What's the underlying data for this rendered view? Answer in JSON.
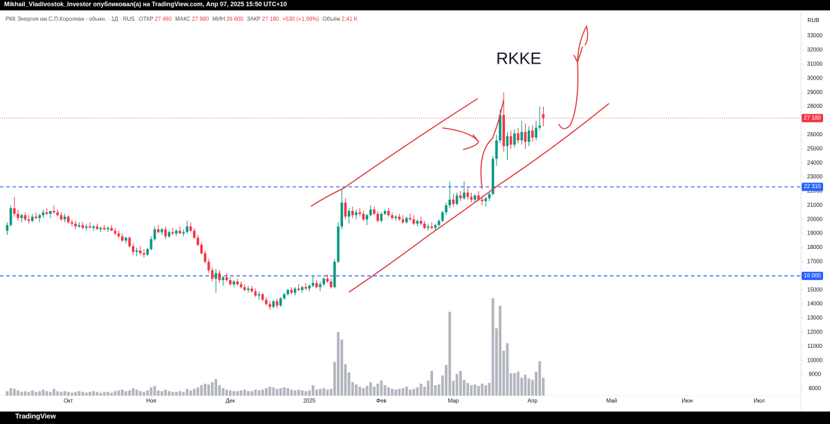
{
  "header": "Mikhail_Vladivostok_Investor опубликовал(а) на TradingView.com, Апр 07, 2025 15:50 UTC+10",
  "footer": "TradingView",
  "chart_data": {
    "type": "candlestick",
    "symbol": "РКК Энергия им.С.П.Королева - обыкн. · 1Д · RUS",
    "legend": [
      {
        "label": "ОТКР",
        "value": "27 460"
      },
      {
        "label": "МАКС",
        "value": "27 980"
      },
      {
        "label": "МИН",
        "value": "26 600"
      },
      {
        "label": "ЗАКР",
        "value": "27 180"
      }
    ],
    "change": "+530 (+1,99%)",
    "volume_label": {
      "label": "Объём",
      "value": "2,41 K"
    },
    "annotation": "RKKE",
    "currency": "RUB",
    "up_color": "#089981",
    "down_color": "#f23645",
    "volume_color": "#b2b5be",
    "grid": false,
    "xlim": [
      -2,
      221
    ],
    "ylim": [
      6480,
      34720
    ],
    "y2lim": [
      0,
      17
    ],
    "yticks": [
      8000,
      9000,
      10000,
      11000,
      12000,
      13000,
      14000,
      15000,
      16000,
      17000,
      18000,
      19000,
      20000,
      21000,
      22000,
      23000,
      24000,
      25000,
      26000,
      27000,
      28000,
      29000,
      30000,
      31000,
      32000,
      33000
    ],
    "xticks": [
      {
        "value": 17,
        "label": "Окт"
      },
      {
        "value": 40,
        "label": "Ноя"
      },
      {
        "value": 62,
        "label": "Дек"
      },
      {
        "value": 84,
        "label": "2025"
      },
      {
        "value": 104,
        "label": "Фев"
      },
      {
        "value": 124,
        "label": "Мар"
      },
      {
        "value": 146,
        "label": "Апр"
      },
      {
        "value": 168,
        "label": "Май"
      },
      {
        "value": 189,
        "label": "Июн"
      },
      {
        "value": 209,
        "label": "Июл"
      }
    ],
    "last_price": {
      "value": 27180,
      "label": "27 180",
      "color": "#f23645"
    },
    "levels": [
      {
        "value": 22310,
        "label": "22 310",
        "color": "#2962ff"
      },
      {
        "value": 16000,
        "label": "16 000",
        "color": "#2962ff"
      }
    ],
    "ohlc": [
      [
        19200,
        19800,
        18900,
        19600
      ],
      [
        19600,
        21000,
        19500,
        20800
      ],
      [
        20800,
        21600,
        20200,
        20400
      ],
      [
        20400,
        20700,
        19900,
        20100
      ],
      [
        20100,
        20400,
        19800,
        20300
      ],
      [
        20300,
        20500,
        19900,
        20000
      ],
      [
        20000,
        20300,
        19700,
        19900
      ],
      [
        19900,
        20400,
        19800,
        20200
      ],
      [
        20200,
        20500,
        20000,
        20100
      ],
      [
        20100,
        20400,
        19800,
        20300
      ],
      [
        20300,
        20700,
        20100,
        20500
      ],
      [
        20500,
        20800,
        20300,
        20400
      ],
      [
        20400,
        20600,
        20100,
        20600
      ],
      [
        20600,
        21000,
        20400,
        20500
      ],
      [
        20500,
        20700,
        20200,
        20300
      ],
      [
        20300,
        20500,
        19900,
        20000
      ],
      [
        20000,
        20400,
        19800,
        20200
      ],
      [
        20200,
        20300,
        19700,
        19800
      ],
      [
        19800,
        20000,
        19500,
        19700
      ],
      [
        19700,
        19900,
        19300,
        19500
      ],
      [
        19500,
        19800,
        19400,
        19600
      ],
      [
        19600,
        19800,
        19300,
        19400
      ],
      [
        19400,
        19700,
        19200,
        19500
      ],
      [
        19500,
        19800,
        19400,
        19400
      ],
      [
        19400,
        19600,
        19200,
        19500
      ],
      [
        19500,
        19700,
        19300,
        19300
      ],
      [
        19300,
        19500,
        19100,
        19400
      ],
      [
        19400,
        19600,
        19200,
        19300
      ],
      [
        19300,
        19500,
        19100,
        19400
      ],
      [
        19400,
        19600,
        19200,
        19200
      ],
      [
        19200,
        19400,
        18900,
        19000
      ],
      [
        19000,
        19200,
        18700,
        18800
      ],
      [
        18800,
        19000,
        18400,
        18500
      ],
      [
        18500,
        18800,
        18300,
        18700
      ],
      [
        18700,
        18800,
        18000,
        18100
      ],
      [
        18100,
        18300,
        17500,
        17700
      ],
      [
        17700,
        18000,
        17400,
        17800
      ],
      [
        17800,
        18100,
        17500,
        17600
      ],
      [
        17600,
        17900,
        17300,
        17500
      ],
      [
        17500,
        18000,
        17400,
        17900
      ],
      [
        17900,
        18800,
        17800,
        18600
      ],
      [
        18600,
        19500,
        18500,
        19300
      ],
      [
        19300,
        19600,
        19000,
        19100
      ],
      [
        19100,
        19400,
        18900,
        19300
      ],
      [
        19300,
        19500,
        18600,
        18800
      ],
      [
        18800,
        19200,
        18700,
        19100
      ],
      [
        19100,
        19400,
        18900,
        19000
      ],
      [
        19000,
        19300,
        18800,
        19200
      ],
      [
        19200,
        19500,
        19000,
        19000
      ],
      [
        19000,
        19300,
        18800,
        19100
      ],
      [
        19100,
        19900,
        19000,
        19500
      ],
      [
        19500,
        19800,
        19100,
        19200
      ],
      [
        19200,
        19400,
        18600,
        18700
      ],
      [
        18700,
        18900,
        18100,
        18200
      ],
      [
        18200,
        18400,
        17500,
        17600
      ],
      [
        17600,
        17800,
        16900,
        17000
      ],
      [
        17000,
        17200,
        16200,
        16400
      ],
      [
        16400,
        16600,
        15600,
        15800
      ],
      [
        15800,
        16500,
        14800,
        16200
      ],
      [
        16200,
        16400,
        15500,
        15700
      ],
      [
        15700,
        16000,
        15300,
        15900
      ],
      [
        15900,
        16200,
        15600,
        15700
      ],
      [
        15700,
        15900,
        15300,
        15400
      ],
      [
        15400,
        15700,
        15200,
        15600
      ],
      [
        15600,
        15800,
        15300,
        15400
      ],
      [
        15400,
        15600,
        15100,
        15200
      ],
      [
        15200,
        15400,
        14900,
        15000
      ],
      [
        15000,
        15300,
        14800,
        15100
      ],
      [
        15100,
        15300,
        14800,
        14900
      ],
      [
        14900,
        15100,
        14500,
        14600
      ],
      [
        14600,
        14900,
        14300,
        14700
      ],
      [
        14700,
        14800,
        14200,
        14300
      ],
      [
        14300,
        14500,
        13900,
        14000
      ],
      [
        14000,
        14200,
        13600,
        13800
      ],
      [
        13800,
        14300,
        13700,
        14200
      ],
      [
        14200,
        14400,
        13700,
        13900
      ],
      [
        13900,
        14500,
        13800,
        14400
      ],
      [
        14400,
        14800,
        14300,
        14700
      ],
      [
        14700,
        15100,
        14600,
        15000
      ],
      [
        15000,
        15200,
        14700,
        14800
      ],
      [
        14800,
        15200,
        14600,
        15100
      ],
      [
        15100,
        15400,
        14900,
        15000
      ],
      [
        15000,
        15300,
        14800,
        15200
      ],
      [
        15200,
        15500,
        15000,
        15100
      ],
      [
        15100,
        15400,
        14900,
        15300
      ],
      [
        15300,
        16000,
        15200,
        15500
      ],
      [
        15500,
        15700,
        15100,
        15200
      ],
      [
        15200,
        15600,
        14900,
        15400
      ],
      [
        15400,
        15900,
        15300,
        15800
      ],
      [
        15800,
        16100,
        15500,
        15600
      ],
      [
        15600,
        15800,
        15100,
        15200
      ],
      [
        15200,
        17200,
        15100,
        17000
      ],
      [
        17000,
        19800,
        16900,
        19500
      ],
      [
        19500,
        22200,
        19300,
        21200
      ],
      [
        21200,
        21500,
        20000,
        20200
      ],
      [
        20200,
        20800,
        19700,
        20600
      ],
      [
        20600,
        20900,
        20100,
        20300
      ],
      [
        20300,
        20700,
        20000,
        20500
      ],
      [
        20500,
        20800,
        20200,
        20400
      ],
      [
        20400,
        20600,
        19900,
        20000
      ],
      [
        20000,
        20400,
        19600,
        20300
      ],
      [
        20300,
        21000,
        20200,
        20700
      ],
      [
        20700,
        20900,
        20300,
        20400
      ],
      [
        20400,
        20600,
        19800,
        19900
      ],
      [
        19900,
        20500,
        19800,
        20400
      ],
      [
        20400,
        20700,
        20300,
        20600
      ],
      [
        20600,
        20800,
        20200,
        20300
      ],
      [
        20300,
        20500,
        20000,
        20100
      ],
      [
        20100,
        20300,
        19900,
        20200
      ],
      [
        20200,
        20400,
        19900,
        20000
      ],
      [
        20000,
        20300,
        19700,
        19800
      ],
      [
        19800,
        20200,
        19700,
        20100
      ],
      [
        20100,
        20400,
        19900,
        20000
      ],
      [
        20000,
        20300,
        19600,
        19700
      ],
      [
        19700,
        20000,
        19500,
        19900
      ],
      [
        19900,
        20200,
        19600,
        19700
      ],
      [
        19700,
        19900,
        19300,
        19400
      ],
      [
        19400,
        19700,
        19200,
        19500
      ],
      [
        19500,
        19800,
        19300,
        19400
      ],
      [
        19400,
        19700,
        19200,
        19600
      ],
      [
        19600,
        20000,
        19500,
        19900
      ],
      [
        19900,
        20600,
        19800,
        20500
      ],
      [
        20500,
        21200,
        20300,
        21000
      ],
      [
        21000,
        22700,
        20800,
        21400
      ],
      [
        21400,
        21800,
        20900,
        21100
      ],
      [
        21100,
        21900,
        21000,
        21700
      ],
      [
        21700,
        22000,
        21300,
        21500
      ],
      [
        21500,
        22700,
        21400,
        21900
      ],
      [
        21900,
        22300,
        21400,
        21600
      ],
      [
        21600,
        21900,
        21200,
        21400
      ],
      [
        21400,
        21800,
        21200,
        21700
      ],
      [
        21700,
        22000,
        21300,
        21400
      ],
      [
        21400,
        21700,
        21000,
        21300
      ],
      [
        21300,
        21600,
        20900,
        21500
      ],
      [
        21500,
        21900,
        21300,
        21800
      ],
      [
        21800,
        24500,
        21700,
        24300
      ],
      [
        24300,
        26000,
        23800,
        25600
      ],
      [
        25600,
        27800,
        25400,
        27400
      ],
      [
        27400,
        29000,
        24800,
        25200
      ],
      [
        25200,
        26200,
        24200,
        25900
      ],
      [
        25900,
        26300,
        25000,
        25300
      ],
      [
        25300,
        26400,
        25100,
        26100
      ],
      [
        26100,
        26500,
        25400,
        25600
      ],
      [
        25600,
        27000,
        25300,
        26200
      ],
      [
        26200,
        26800,
        25000,
        25500
      ],
      [
        25500,
        26600,
        25200,
        26300
      ],
      [
        26300,
        26700,
        25500,
        25800
      ],
      [
        25800,
        27000,
        25600,
        26500
      ],
      [
        26500,
        28000,
        26300,
        26650
      ],
      [
        27460,
        27980,
        26600,
        27180
      ]
    ],
    "volume": [
      0.6,
      1.0,
      0.9,
      0.7,
      0.5,
      0.6,
      0.5,
      0.7,
      0.5,
      0.6,
      0.8,
      0.6,
      0.5,
      0.9,
      0.6,
      0.5,
      0.6,
      0.5,
      0.4,
      0.5,
      0.6,
      0.5,
      0.4,
      0.5,
      0.6,
      0.5,
      0.4,
      0.5,
      0.5,
      0.4,
      0.6,
      0.7,
      0.8,
      0.6,
      0.7,
      1.0,
      0.8,
      0.6,
      0.5,
      0.7,
      1.1,
      1.3,
      0.7,
      0.6,
      0.8,
      0.6,
      0.5,
      0.5,
      0.6,
      0.5,
      0.9,
      0.7,
      0.9,
      1.1,
      1.4,
      1.6,
      1.5,
      1.8,
      2.2,
      1.4,
      1.0,
      0.8,
      0.7,
      0.6,
      0.6,
      0.7,
      0.8,
      0.6,
      0.6,
      0.8,
      0.7,
      0.8,
      1.0,
      1.2,
      1.1,
      0.9,
      1.0,
      1.1,
      1.0,
      0.8,
      0.7,
      0.8,
      0.7,
      0.6,
      0.7,
      1.4,
      0.8,
      0.9,
      1.0,
      0.8,
      0.9,
      4.5,
      8.5,
      7.5,
      4.2,
      3.1,
      1.8,
      1.5,
      1.2,
      1.0,
      1.3,
      1.8,
      1.2,
      1.6,
      2.0,
      1.4,
      1.1,
      0.9,
      0.8,
      0.9,
      1.0,
      1.2,
      0.8,
      0.9,
      1.1,
      1.6,
      1.2,
      2.0,
      3.3,
      1.4,
      1.5,
      2.7,
      4.1,
      11.2,
      2.0,
      2.9,
      3.3,
      2.1,
      1.7,
      1.4,
      1.5,
      1.3,
      1.6,
      1.4,
      1.7,
      13.0,
      9.0,
      12.0,
      6.0,
      7.0,
      3.0,
      3.0,
      3.2,
      2.4,
      2.8,
      2.3,
      2.1,
      3.2,
      4.6,
      2.41
    ]
  }
}
